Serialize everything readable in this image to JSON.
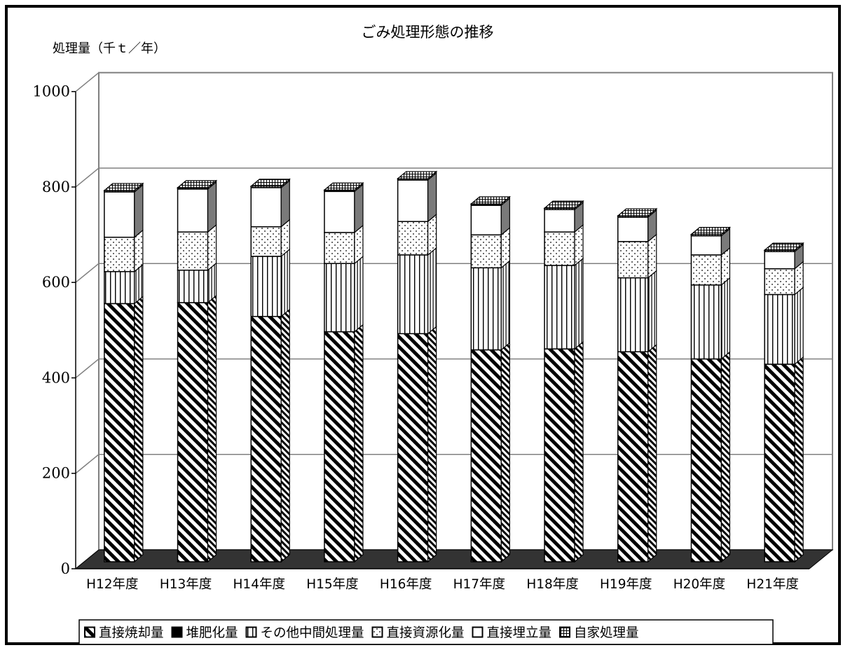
{
  "chart_data": {
    "type": "bar",
    "stacked": true,
    "three_d": true,
    "title": "ごみ処理形態の推移",
    "ylabel": "処理量（千ｔ／年）",
    "xlabel": "",
    "ylim": [
      0,
      1000
    ],
    "yticks": [
      0,
      200,
      400,
      600,
      800,
      1000
    ],
    "grid": true,
    "legend_position": "bottom",
    "categories": [
      "H12年度",
      "H13年度",
      "H14年度",
      "H15年度",
      "H16年度",
      "H17年度",
      "H18年度",
      "H19年度",
      "H20年度",
      "H21年度"
    ],
    "series": [
      {
        "name": "直接焼却量",
        "pattern": "diagonal-hatch",
        "values": [
          541,
          543,
          514,
          482,
          478,
          444,
          446,
          440,
          425,
          414
        ]
      },
      {
        "name": "堆肥化量",
        "pattern": "solid-black",
        "values": [
          0,
          0,
          0,
          0,
          0,
          0,
          0,
          0,
          0,
          0
        ]
      },
      {
        "name": "その他中間処理量",
        "pattern": "vertical-lines",
        "values": [
          67,
          68,
          126,
          143,
          165,
          172,
          175,
          155,
          155,
          146
        ]
      },
      {
        "name": "直接資源化量",
        "pattern": "dots",
        "values": [
          72,
          80,
          62,
          65,
          70,
          69,
          70,
          76,
          63,
          54
        ]
      },
      {
        "name": "直接埋立量",
        "pattern": "white",
        "values": [
          95,
          90,
          82,
          86,
          87,
          62,
          47,
          51,
          40,
          36
        ]
      },
      {
        "name": "自家処理量",
        "pattern": "grid",
        "values": [
          3,
          3,
          3,
          3,
          3,
          3,
          3,
          3,
          3,
          3
        ]
      }
    ],
    "colors": {
      "stroke": "#000000",
      "floor": "#333333",
      "grid": "#808080"
    }
  }
}
